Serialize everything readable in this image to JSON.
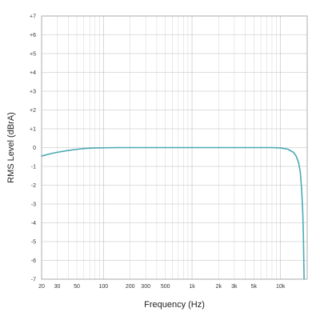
{
  "chart_data": {
    "type": "line",
    "xlabel": "Frequency (Hz)",
    "ylabel": "RMS Level (dBrA)",
    "x_scale": "log",
    "xlim": [
      20,
      20000
    ],
    "ylim": [
      -7,
      7
    ],
    "grid": true,
    "x_ticks": [
      {
        "value": 20,
        "label": "20"
      },
      {
        "value": 30,
        "label": "30"
      },
      {
        "value": 50,
        "label": "50"
      },
      {
        "value": 100,
        "label": "100"
      },
      {
        "value": 200,
        "label": "200"
      },
      {
        "value": 300,
        "label": "300"
      },
      {
        "value": 500,
        "label": "500"
      },
      {
        "value": 1000,
        "label": "1k"
      },
      {
        "value": 2000,
        "label": "2k"
      },
      {
        "value": 3000,
        "label": "3k"
      },
      {
        "value": 5000,
        "label": "5k"
      },
      {
        "value": 10000,
        "label": "10k"
      }
    ],
    "y_ticks": [
      {
        "value": 7,
        "label": "+7"
      },
      {
        "value": 6,
        "label": "+6"
      },
      {
        "value": 5,
        "label": "+5"
      },
      {
        "value": 4,
        "label": "+4"
      },
      {
        "value": 3,
        "label": "+3"
      },
      {
        "value": 2,
        "label": "+2"
      },
      {
        "value": 1,
        "label": "+1"
      },
      {
        "value": 0,
        "label": "0"
      },
      {
        "value": -1,
        "label": "-1"
      },
      {
        "value": -2,
        "label": "-2"
      },
      {
        "value": -3,
        "label": "-3"
      },
      {
        "value": -4,
        "label": "-4"
      },
      {
        "value": -5,
        "label": "-5"
      },
      {
        "value": -6,
        "label": "-6"
      },
      {
        "value": -7,
        "label": "-7"
      }
    ],
    "series": [
      {
        "color": "#4aa9b3",
        "x": [
          20,
          25,
          30,
          40,
          50,
          60,
          70,
          80,
          100,
          150,
          200,
          300,
          500,
          1000,
          2000,
          3000,
          5000,
          8000,
          10000,
          12000,
          14000,
          15000,
          16000,
          16700,
          17300,
          17800,
          18100,
          18300,
          18450
        ],
        "y": [
          -0.45,
          -0.33,
          -0.25,
          -0.15,
          -0.09,
          -0.05,
          -0.03,
          -0.02,
          -0.01,
          0,
          0,
          0,
          0,
          0,
          0,
          0,
          0,
          0,
          -0.02,
          -0.08,
          -0.25,
          -0.45,
          -0.8,
          -1.3,
          -2.2,
          -3.4,
          -4.6,
          -6.0,
          -7.0
        ]
      }
    ]
  }
}
